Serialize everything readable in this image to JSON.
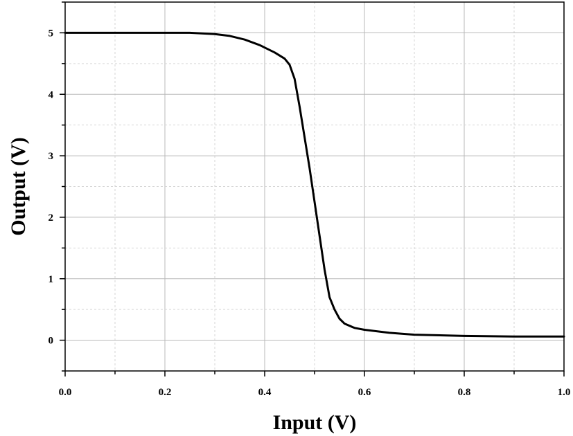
{
  "chart_data": {
    "type": "line",
    "title": "",
    "xlabel": "Input (V)",
    "ylabel": "Output (V)",
    "xlim": [
      0.0,
      1.0
    ],
    "ylim": [
      -0.5,
      5.5
    ],
    "x_ticks": [
      "0.0",
      "0.2",
      "0.4",
      "0.6",
      "0.8",
      "1.0"
    ],
    "y_ticks": [
      "0",
      "1",
      "2",
      "3",
      "4",
      "5"
    ],
    "grid": true,
    "legend": "none",
    "line_color": "#000000",
    "series": [
      {
        "x": [
          0.0,
          0.05,
          0.1,
          0.15,
          0.2,
          0.25,
          0.3,
          0.33,
          0.36,
          0.39,
          0.42,
          0.44,
          0.45,
          0.46,
          0.47,
          0.48,
          0.49,
          0.5,
          0.51,
          0.52,
          0.53,
          0.54,
          0.55,
          0.56,
          0.58,
          0.6,
          0.65,
          0.7,
          0.8,
          0.9,
          1.0
        ],
        "y": [
          5.0,
          5.0,
          5.0,
          5.0,
          5.0,
          5.0,
          4.98,
          4.95,
          4.89,
          4.8,
          4.68,
          4.58,
          4.48,
          4.25,
          3.8,
          3.3,
          2.8,
          2.25,
          1.7,
          1.15,
          0.7,
          0.5,
          0.35,
          0.27,
          0.2,
          0.17,
          0.12,
          0.09,
          0.07,
          0.06,
          0.06
        ]
      }
    ]
  }
}
